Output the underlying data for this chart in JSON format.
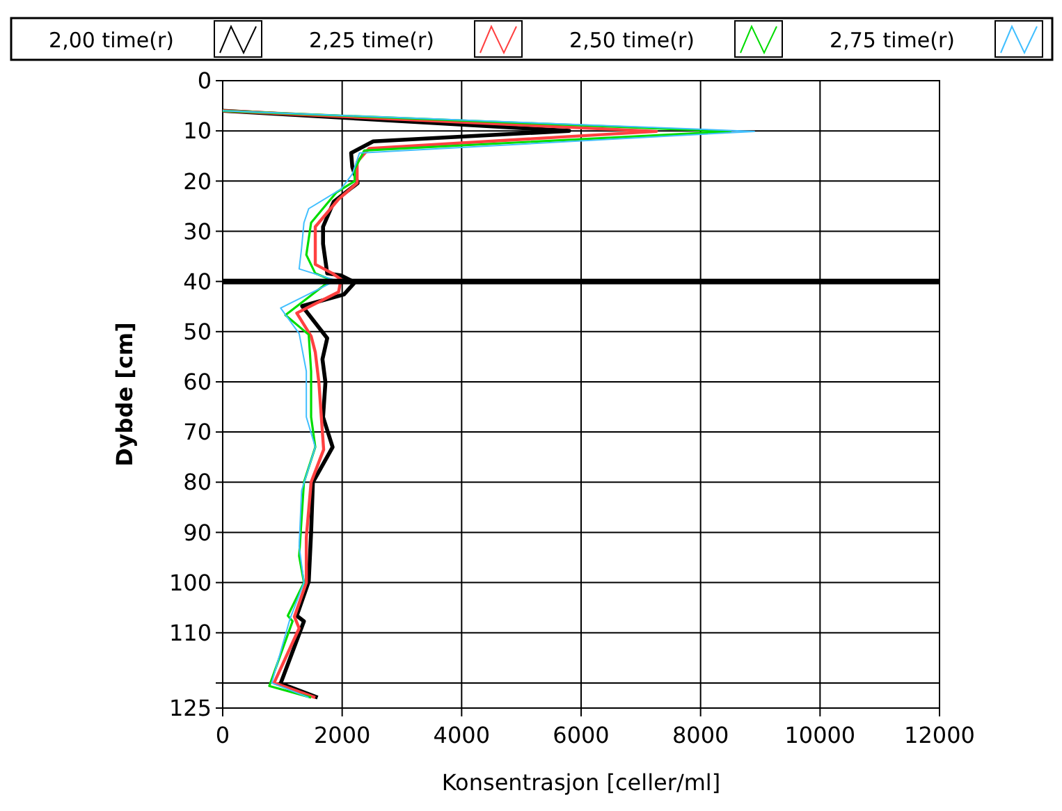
{
  "chart_data": {
    "type": "line",
    "xlabel": "Konsentrasjon [celler/ml]",
    "ylabel": "Dybde [cm]",
    "xlim": [
      0,
      12000
    ],
    "xticks": [
      0,
      2000,
      4000,
      6000,
      8000,
      10000,
      12000
    ],
    "ylim": [
      125,
      0
    ],
    "yticks": [
      0,
      10,
      20,
      30,
      40,
      50,
      60,
      70,
      80,
      90,
      100,
      110,
      {
        "value": 120,
        "label": null
      },
      125
    ],
    "grid": true,
    "legend": "top",
    "marker": "none",
    "line_style": "solid",
    "ref_lines": [
      {
        "axis": "y",
        "value": 40,
        "color": "#000000"
      }
    ],
    "series": [
      {
        "name": "2,00 time(r)",
        "color": "#000000",
        "x": [
          0,
          5800,
          2520,
          2150,
          2170,
          2260,
          1860,
          1680,
          1680,
          1750,
          1980,
          2210,
          2030,
          1330,
          1750,
          1670,
          1720,
          1680,
          1840,
          1510,
          1480,
          1440,
          1240,
          1360,
          970,
          1590
        ],
        "values": [
          6,
          10,
          12.1,
          14.4,
          17.2,
          20.4,
          24.1,
          29.1,
          32.5,
          38.4,
          38.8,
          40.2,
          42.6,
          44.9,
          51.3,
          55.5,
          60.1,
          67,
          73,
          80,
          90,
          99.8,
          106.6,
          107.7,
          120.1,
          122.9
        ]
      },
      {
        "name": "2,25 time(r)",
        "color": "#ff4040",
        "x": [
          0,
          7260,
          2450,
          2250,
          2250,
          1940,
          1550,
          1550,
          1840,
          1980,
          1940,
          1240,
          1480,
          1550,
          1610,
          1690,
          1480,
          1400,
          1400,
          1200,
          1280,
          860,
          1550
        ],
        "values": [
          6,
          10.1,
          13.5,
          16.2,
          20.4,
          23.6,
          29.1,
          36.6,
          38.4,
          39.6,
          42.1,
          46.3,
          50.9,
          54.1,
          60.1,
          73.5,
          80,
          91,
          100,
          106.8,
          109.1,
          120,
          122.9
        ]
      },
      {
        "name": "2,50 time(r)",
        "color": "#00dd00",
        "x": [
          0,
          8500,
          2370,
          2210,
          2210,
          1900,
          1480,
          1400,
          1550,
          1840,
          1750,
          1050,
          1440,
          1480,
          1480,
          1550,
          1360,
          1280,
          1360,
          1090,
          1170,
          780,
          1480
        ],
        "values": [
          6,
          10.1,
          13.9,
          17.6,
          20,
          22.3,
          28.3,
          34.7,
          38.4,
          39.8,
          40.3,
          46.7,
          50.6,
          57.9,
          67,
          73,
          80,
          94.7,
          100,
          106.6,
          107.7,
          120.6,
          122.9
        ]
      },
      {
        "name": "2,75 time(r)",
        "color": "#40bfff",
        "x": [
          0,
          8900,
          2290,
          2170,
          1980,
          1440,
          1360,
          1320,
          1280,
          1900,
          970,
          1280,
          1400,
          1400,
          1550,
          1320,
          1280,
          1360,
          1130,
          820,
          1440
        ],
        "values": [
          6,
          10.1,
          14.4,
          18.6,
          21.6,
          25.5,
          28.3,
          33.4,
          37.5,
          39.8,
          45.3,
          50.4,
          57.9,
          67,
          73,
          81.7,
          92.8,
          100,
          107.1,
          120,
          122.9
        ]
      }
    ]
  }
}
